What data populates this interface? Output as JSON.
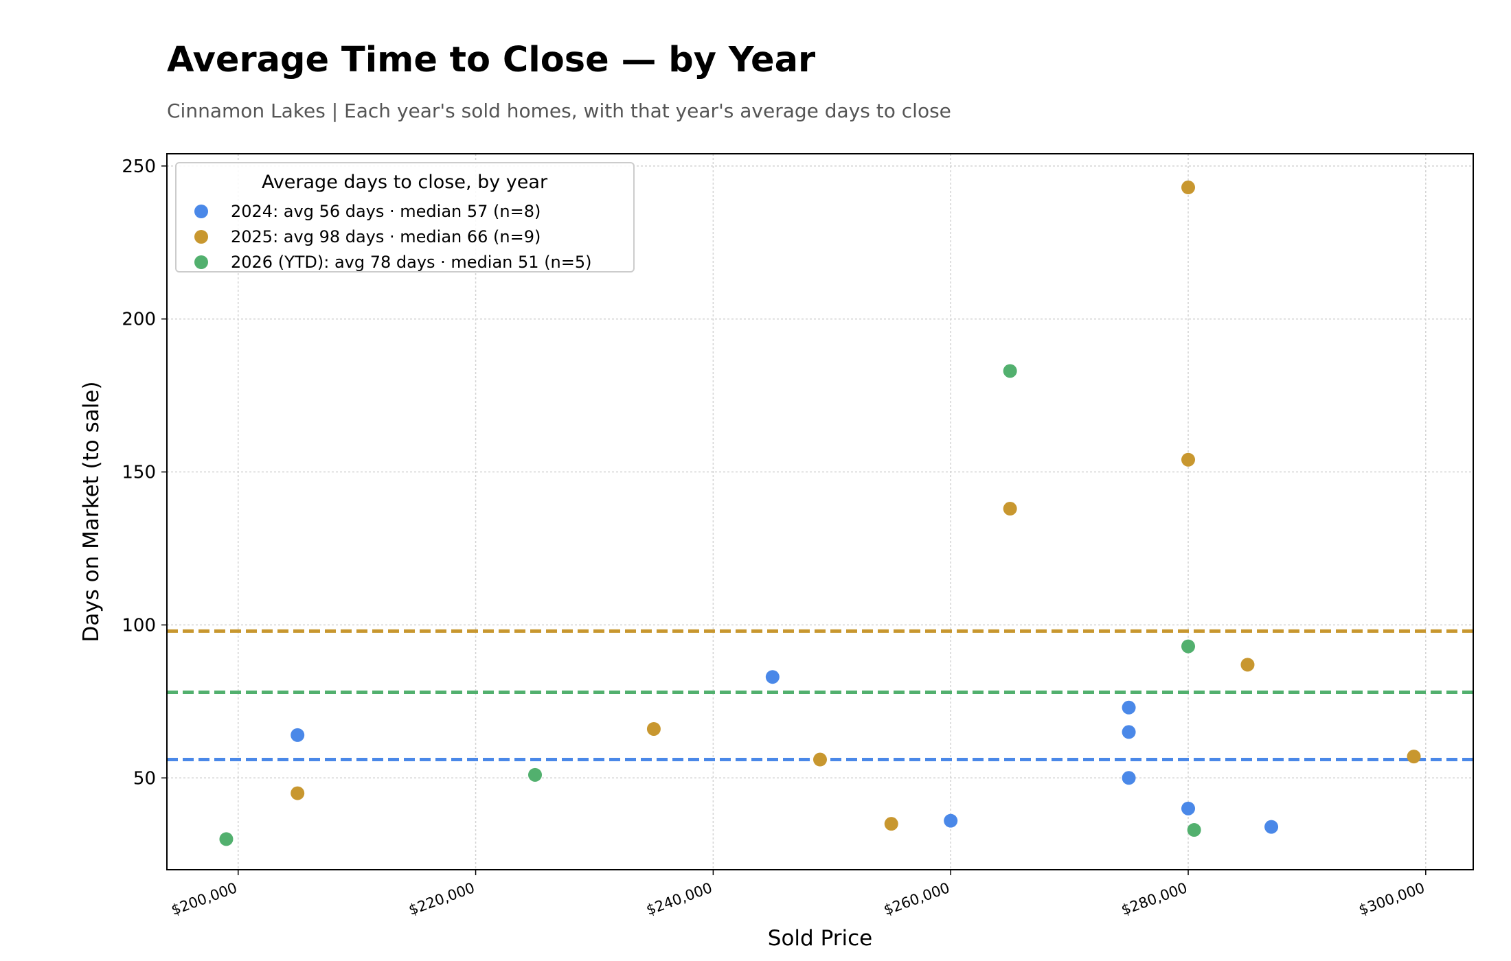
{
  "chart_data": {
    "type": "scatter",
    "title": "Average Time to Close — by Year",
    "subtitle": "Cinnamon Lakes  |  Each year's sold homes, with that year's average days to close",
    "xlabel": "Sold Price",
    "ylabel": "Days on Market (to sale)",
    "xlim": [
      194000,
      304000
    ],
    "ylim": [
      20,
      254
    ],
    "xticks": [
      200000,
      220000,
      240000,
      260000,
      280000,
      300000
    ],
    "xtick_labels": [
      "$200,000",
      "$220,000",
      "$240,000",
      "$260,000",
      "$280,000",
      "$300,000"
    ],
    "yticks": [
      50,
      100,
      150,
      200,
      250
    ],
    "ytick_labels": [
      "50",
      "100",
      "150",
      "200",
      "250"
    ],
    "grid": true,
    "legend": {
      "title": "Average days to close, by year",
      "placement": "top-left"
    },
    "series": [
      {
        "name": "2024: avg 56 days  ·  median 57  (n=8)",
        "color": "#4a88e8",
        "average": 56,
        "points": [
          [
            205000,
            64
          ],
          [
            245000,
            83
          ],
          [
            260000,
            36
          ],
          [
            275000,
            73
          ],
          [
            275000,
            65
          ],
          [
            275000,
            50
          ],
          [
            280000,
            40
          ],
          [
            287000,
            34
          ]
        ]
      },
      {
        "name": "2025: avg 98 days  ·  median 66  (n=9)",
        "color": "#c8972f",
        "average": 98,
        "points": [
          [
            205000,
            45
          ],
          [
            235000,
            66
          ],
          [
            249000,
            56
          ],
          [
            255000,
            35
          ],
          [
            265000,
            138
          ],
          [
            280000,
            243
          ],
          [
            280000,
            154
          ],
          [
            285000,
            87
          ],
          [
            299000,
            57
          ]
        ]
      },
      {
        "name": "2026 (YTD): avg 78 days  ·  median 51  (n=5)",
        "color": "#52b06e",
        "average": 78,
        "points": [
          [
            199000,
            30
          ],
          [
            225000,
            51
          ],
          [
            265000,
            183
          ],
          [
            280000,
            93
          ],
          [
            280500,
            33
          ]
        ]
      }
    ]
  }
}
